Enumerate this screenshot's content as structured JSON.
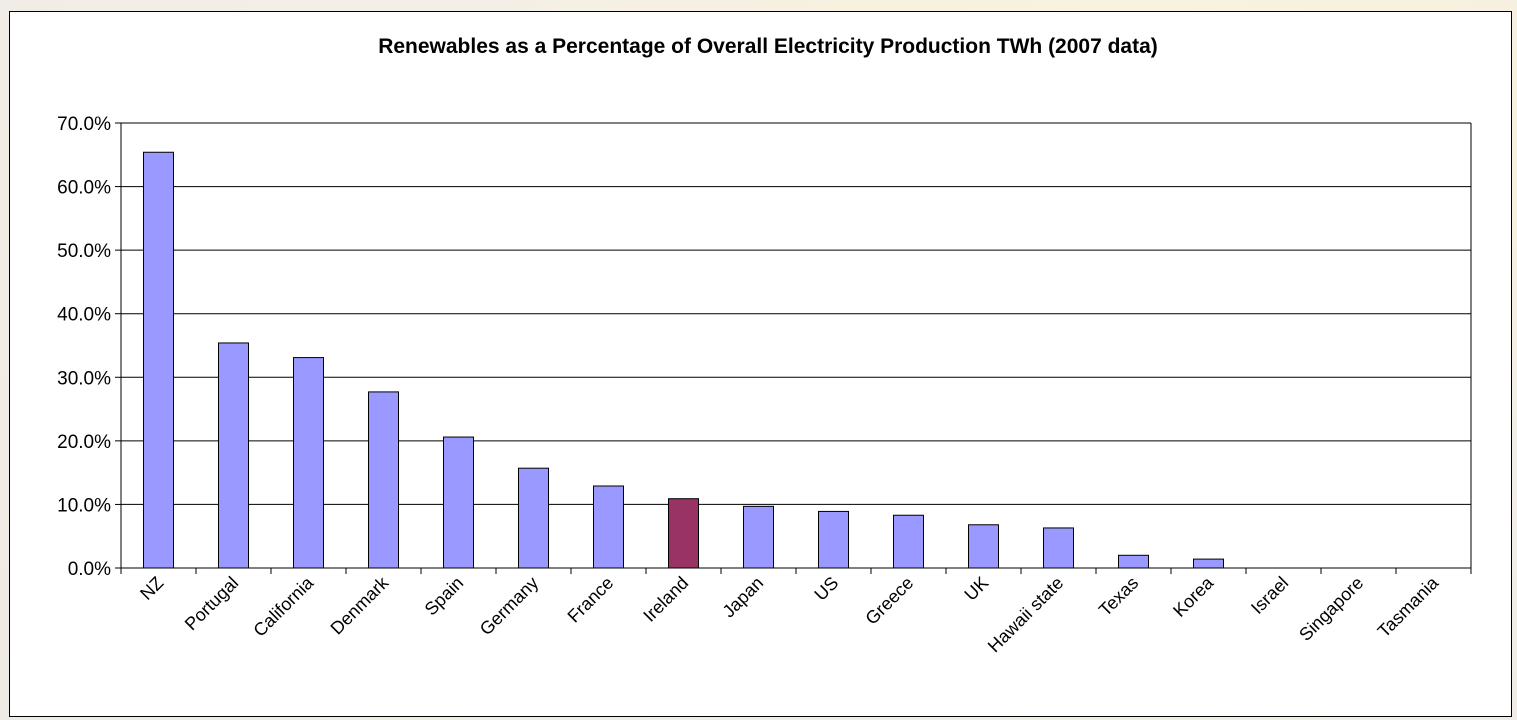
{
  "chart_data": {
    "type": "bar",
    "title": "Renewables as a Percentage of Overall Electricity Production TWh (2007 data)",
    "xlabel": "",
    "ylabel": "",
    "ylim": [
      0,
      70
    ],
    "yticks": [
      "0.0%",
      "10.0%",
      "20.0%",
      "30.0%",
      "40.0%",
      "50.0%",
      "60.0%",
      "70.0%"
    ],
    "grid": true,
    "legend": "none",
    "categories": [
      "NZ",
      "Portugal",
      "California",
      "Denmark",
      "Spain",
      "Germany",
      "France",
      "Ireland",
      "Japan",
      "US",
      "Greece",
      "UK",
      "Hawaii state",
      "Texas",
      "Korea",
      "Israel",
      "Singapore",
      "Tasmania"
    ],
    "values": [
      65.4,
      35.4,
      33.1,
      27.7,
      20.6,
      15.7,
      12.9,
      10.9,
      9.7,
      8.9,
      8.3,
      6.8,
      6.3,
      2.0,
      1.4,
      0.0,
      0.0,
      0.0
    ],
    "highlight_category": "Ireland",
    "colors": {
      "bar": "#9999ff",
      "highlight": "#993366",
      "grid": "#000000"
    }
  }
}
